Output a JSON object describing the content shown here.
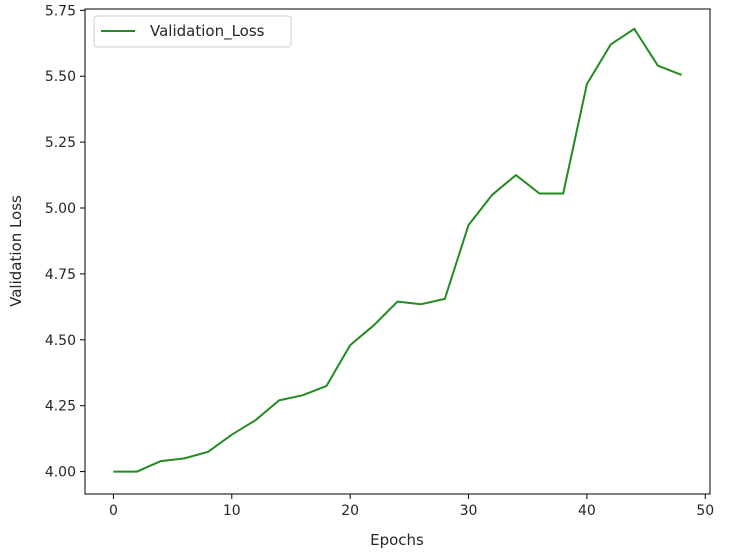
{
  "chart_data": {
    "type": "line",
    "title": "",
    "xlabel": "Epochs",
    "ylabel": "Validation Loss",
    "xlim": [
      -2.4,
      50.4
    ],
    "ylim": [
      3.915,
      5.755
    ],
    "xticks": [
      0,
      10,
      20,
      30,
      40,
      50
    ],
    "yticks": [
      4.0,
      4.25,
      4.5,
      4.75,
      5.0,
      5.25,
      5.5,
      5.75
    ],
    "ytick_labels": [
      "4.00",
      "4.25",
      "4.50",
      "4.75",
      "5.00",
      "5.25",
      "5.50",
      "5.75"
    ],
    "grid": false,
    "legend": {
      "position": "top-left"
    },
    "series": [
      {
        "name": "Validation_Loss",
        "color": "#228b22",
        "x": [
          0,
          2,
          4,
          6,
          8,
          10,
          12,
          14,
          16,
          18,
          20,
          22,
          24,
          26,
          28,
          30,
          32,
          34,
          36,
          38,
          40,
          42,
          44,
          46,
          48
        ],
        "y": [
          4.0,
          4.0,
          4.04,
          4.05,
          4.075,
          4.14,
          4.195,
          4.27,
          4.29,
          4.325,
          4.48,
          4.555,
          4.645,
          4.635,
          4.655,
          4.935,
          5.05,
          5.125,
          5.055,
          5.055,
          5.47,
          5.62,
          5.68,
          5.54,
          5.505
        ]
      }
    ]
  }
}
